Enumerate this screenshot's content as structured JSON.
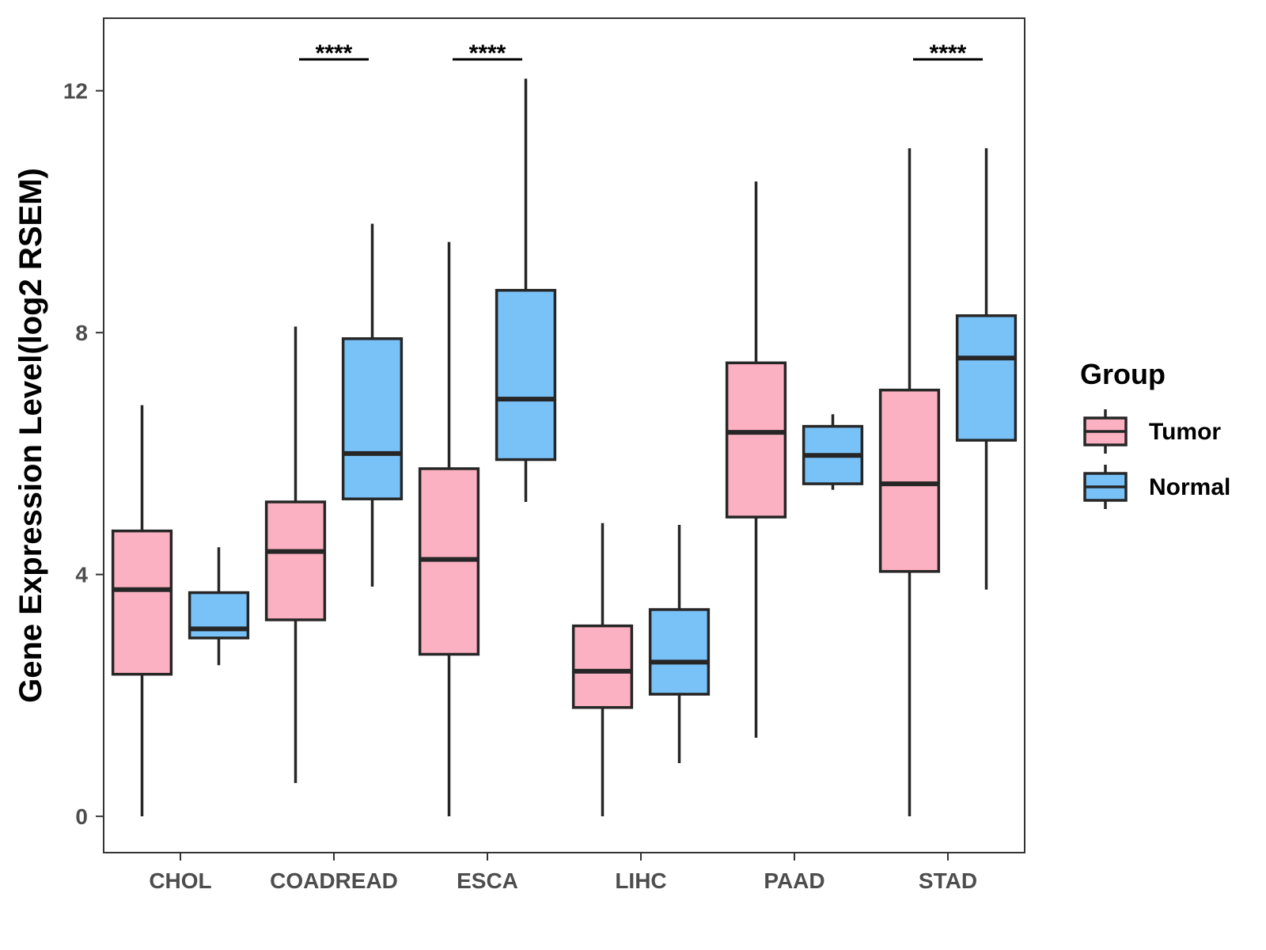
{
  "chart_data": {
    "type": "boxplot",
    "title": "",
    "xlabel": "",
    "ylabel": "Gene Expression Level(log2 RSEM)",
    "ylim": [
      -0.6,
      13.2
    ],
    "yticks": [
      0,
      4,
      8,
      12
    ],
    "ytick_labels": [
      "0",
      "4",
      "8",
      "12"
    ],
    "grid": false,
    "legend": {
      "title": "Group",
      "placement": "right",
      "entries": [
        "Tumor",
        "Normal"
      ]
    },
    "categories": [
      "CHOL",
      "COADREAD",
      "ESCA",
      "LIHC",
      "PAAD",
      "STAD"
    ],
    "series": [
      {
        "name": "Tumor",
        "color": "#fbb1c1",
        "boxes": [
          {
            "category": "CHOL",
            "min": 0.0,
            "q1": 2.35,
            "median": 3.75,
            "q3": 4.72,
            "max": 6.8
          },
          {
            "category": "COADREAD",
            "min": 0.55,
            "q1": 3.25,
            "median": 4.38,
            "q3": 5.2,
            "max": 8.1
          },
          {
            "category": "ESCA",
            "min": 0.0,
            "q1": 2.68,
            "median": 4.25,
            "q3": 5.75,
            "max": 9.5
          },
          {
            "category": "LIHC",
            "min": 0.0,
            "q1": 1.8,
            "median": 2.4,
            "q3": 3.15,
            "max": 4.85
          },
          {
            "category": "PAAD",
            "min": 1.3,
            "q1": 4.95,
            "median": 6.35,
            "q3": 7.5,
            "max": 10.5
          },
          {
            "category": "STAD",
            "min": 0.0,
            "q1": 4.05,
            "median": 5.5,
            "q3": 7.05,
            "max": 11.05
          }
        ]
      },
      {
        "name": "Normal",
        "color": "#79c2f8",
        "boxes": [
          {
            "category": "CHOL",
            "min": 2.5,
            "q1": 2.95,
            "median": 3.1,
            "q3": 3.7,
            "max": 4.45
          },
          {
            "category": "COADREAD",
            "min": 3.8,
            "q1": 5.25,
            "median": 6.0,
            "q3": 7.9,
            "max": 9.8
          },
          {
            "category": "ESCA",
            "min": 5.2,
            "q1": 5.9,
            "median": 6.9,
            "q3": 8.7,
            "max": 12.2
          },
          {
            "category": "LIHC",
            "min": 0.88,
            "q1": 2.02,
            "median": 2.55,
            "q3": 3.42,
            "max": 4.82
          },
          {
            "category": "PAAD",
            "min": 5.4,
            "q1": 5.5,
            "median": 5.97,
            "q3": 6.45,
            "max": 6.65
          },
          {
            "category": "STAD",
            "min": 3.75,
            "q1": 6.22,
            "median": 7.58,
            "q3": 8.28,
            "max": 11.05
          }
        ]
      }
    ],
    "annotations": [
      {
        "category": "COADREAD",
        "text": "****"
      },
      {
        "category": "ESCA",
        "text": "****"
      },
      {
        "category": "STAD",
        "text": "****"
      }
    ]
  }
}
